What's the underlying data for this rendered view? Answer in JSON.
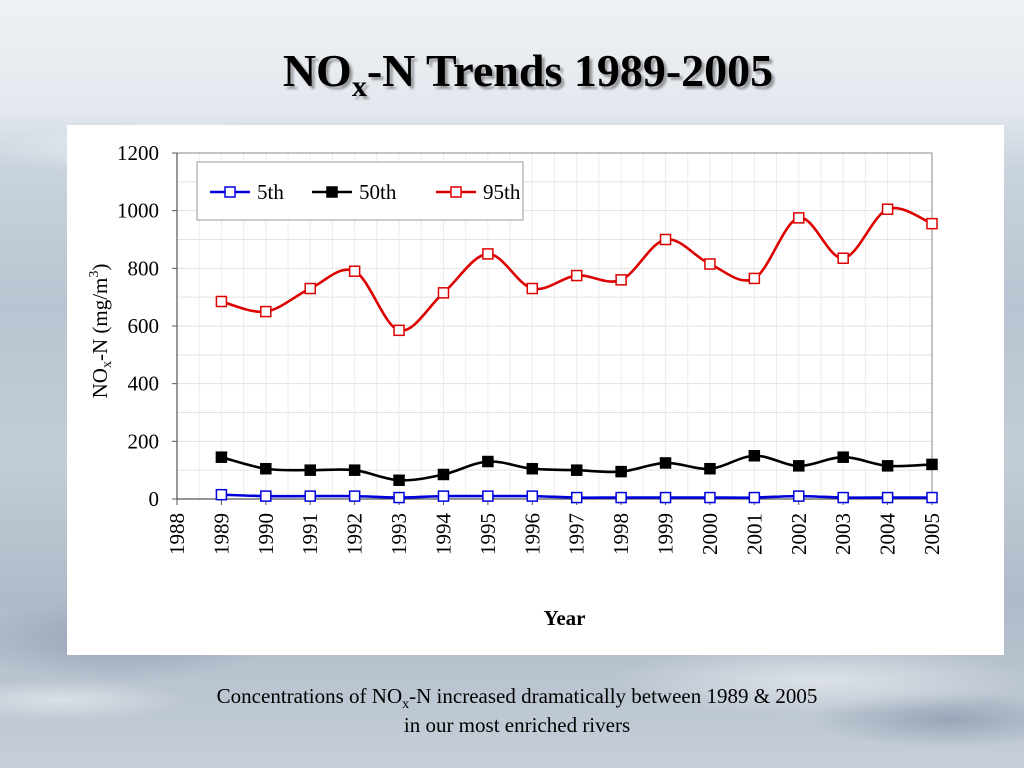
{
  "slide": {
    "title_main": "NO",
    "title_sub": "x",
    "title_rest": "-N Trends 1989-2005",
    "caption_line1_pre": "Concentrations of NO",
    "caption_line1_sub": "x",
    "caption_line1_post": "-N increased dramatically between 1989 & 2005",
    "caption_line2": "in our most enriched rivers"
  },
  "chart_data": {
    "type": "line",
    "xlabel": "Year",
    "ylabel": "NOx-N (mg/m3)",
    "ylabel_parts": {
      "pre": "NO",
      "sub": "x",
      "mid": "-N (mg/m",
      "sup": "3",
      "post": ")"
    },
    "ylim": [
      0,
      1200
    ],
    "xlim": [
      1988,
      2005
    ],
    "yticks": [
      0,
      200,
      400,
      600,
      800,
      1000,
      1200
    ],
    "xticks": [
      1988,
      1989,
      1990,
      1991,
      1992,
      1993,
      1994,
      1995,
      1996,
      1997,
      1998,
      1999,
      2000,
      2001,
      2002,
      2003,
      2004,
      2005
    ],
    "grid": true,
    "legend_position": "top-left",
    "x": [
      1989,
      1990,
      1991,
      1992,
      1993,
      1994,
      1995,
      1996,
      1997,
      1998,
      1999,
      2000,
      2001,
      2002,
      2003,
      2004,
      2005
    ],
    "series": [
      {
        "name": "5th",
        "color": "#0000dd",
        "marker": "open-square",
        "values": [
          15,
          10,
          10,
          10,
          5,
          10,
          10,
          10,
          5,
          5,
          5,
          5,
          5,
          10,
          5,
          5,
          5
        ]
      },
      {
        "name": "50th",
        "color": "#000000",
        "marker": "filled-square",
        "values": [
          145,
          105,
          100,
          100,
          65,
          85,
          130,
          105,
          100,
          95,
          125,
          105,
          150,
          115,
          145,
          115,
          120
        ]
      },
      {
        "name": "95th",
        "color": "#dd0000",
        "marker": "open-square",
        "values": [
          685,
          650,
          730,
          790,
          585,
          715,
          850,
          730,
          775,
          760,
          900,
          815,
          765,
          975,
          835,
          1005,
          955
        ]
      }
    ]
  }
}
